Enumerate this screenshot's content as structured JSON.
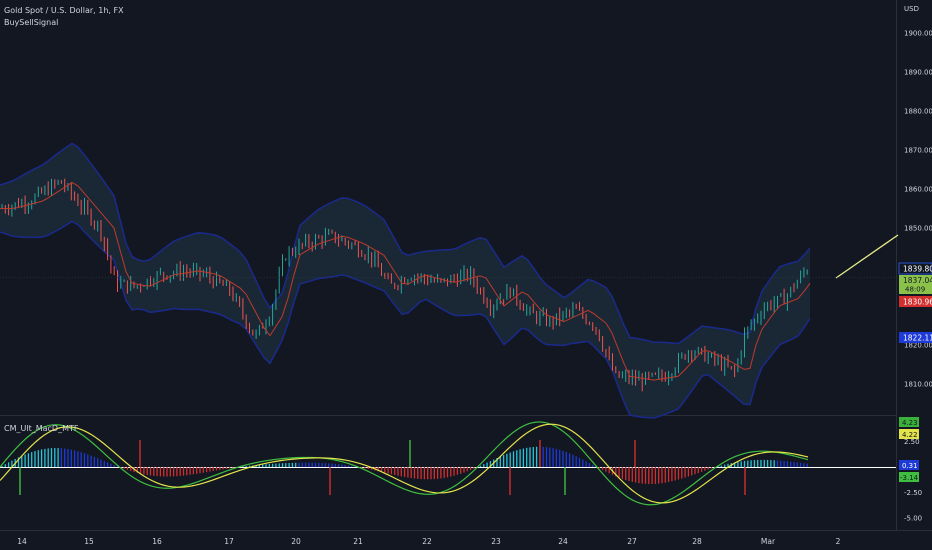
{
  "header": {
    "symbol_title": "Gold Spot / U.S. Dollar, 1h, FX",
    "indicator1": "BuySellSignal",
    "indicator2": "CM_Ult_MacD_MTF",
    "currency": "USD"
  },
  "price_axis": {
    "ticks": [
      "1900.00",
      "1890.00",
      "1880.00",
      "1870.00",
      "1860.00",
      "1850.00",
      "1820.00",
      "1810.00"
    ],
    "tick_values": [
      1900,
      1890,
      1880,
      1870,
      1860,
      1850,
      1820,
      1810
    ],
    "range": [
      1802,
      1905
    ]
  },
  "price_labels": {
    "upper": "1839.80",
    "last_price": "1837.04",
    "countdown": "48:09",
    "basis": "1830.96",
    "lower": "1822.11"
  },
  "macd_axis": {
    "ticks": [
      "2.50",
      "-2.50",
      "-5.00"
    ],
    "tick_values": [
      2.5,
      -2.5,
      -5.0
    ],
    "range": [
      -6,
      6
    ]
  },
  "macd_labels": {
    "macd_value": "4.23",
    "signal_value": "4.22",
    "hist_value": "0.31",
    "neg_value": "-3.14"
  },
  "time_axis": {
    "labels": [
      "14",
      "15",
      "16",
      "17",
      "20",
      "21",
      "22",
      "23",
      "24",
      "27",
      "28",
      "Mar",
      "2"
    ]
  },
  "colors": {
    "bg": "#131722",
    "up": "#26a69a",
    "down": "#ef5350",
    "band_fill": "#1c2b3a",
    "band_line": "#1a2a8c",
    "basis": "#c0392b",
    "macd_line": "#3fbf3f",
    "signal_line": "#e3e34a",
    "hist_up": "#26c6da",
    "hist_down": "#d32f2f",
    "hist_blue": "#1e3ad8",
    "forecast": "#e8ef8a"
  }
}
